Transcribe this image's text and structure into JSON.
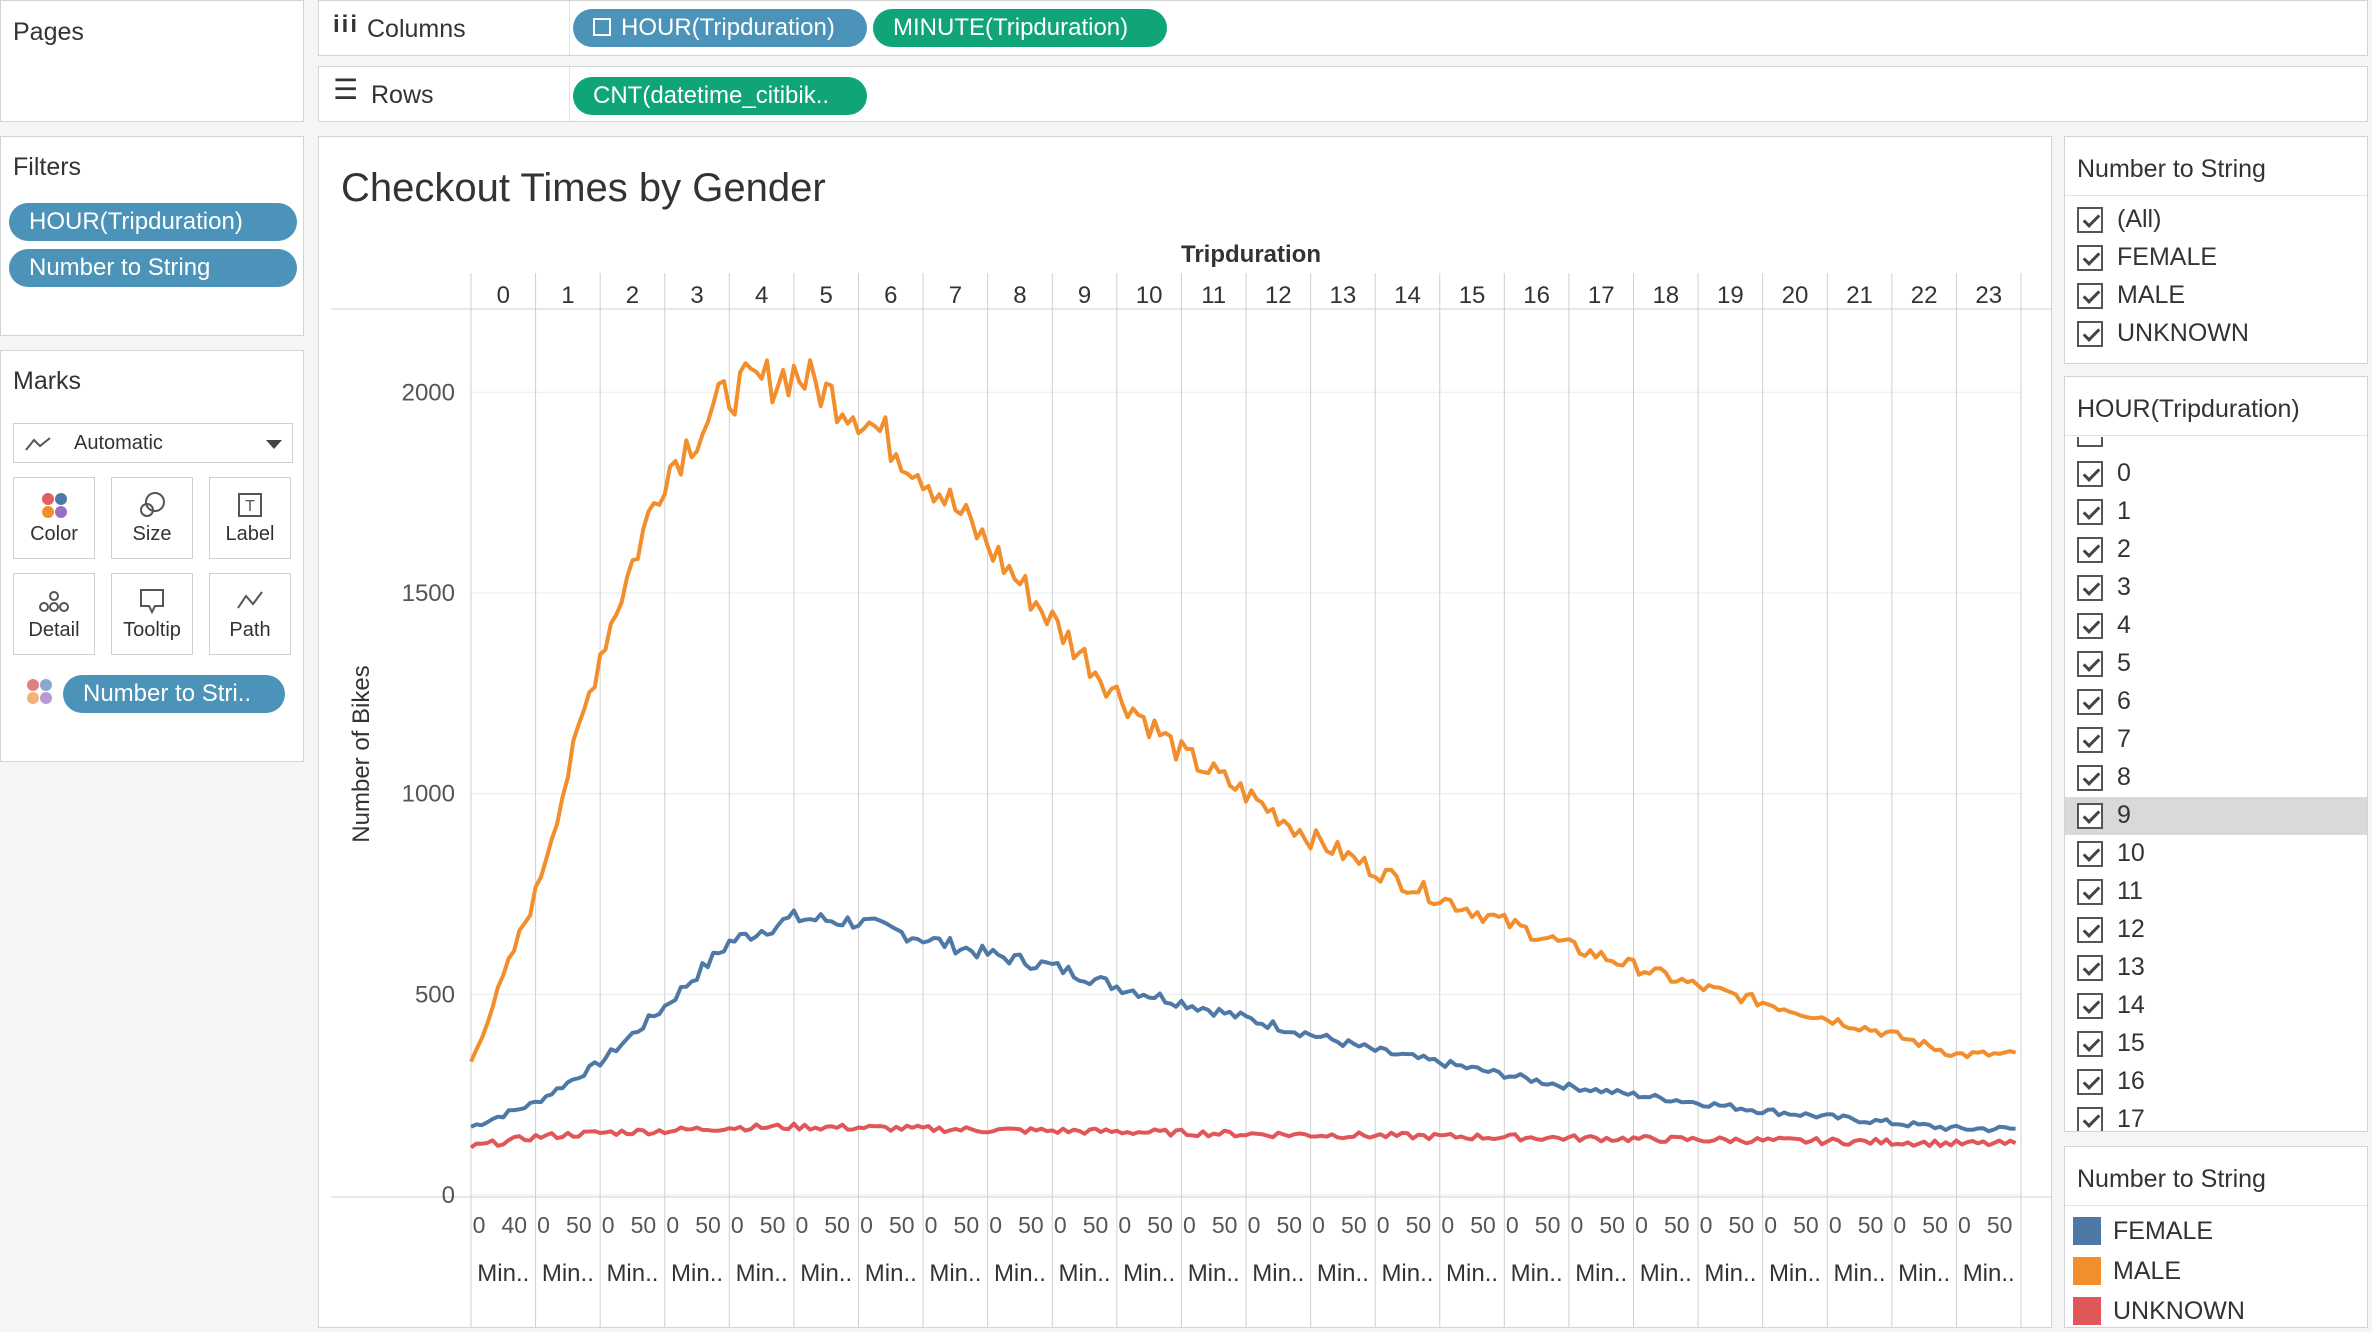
{
  "pages": {
    "title": "Pages"
  },
  "shelves": {
    "columns_label": "Columns",
    "rows_label": "Rows",
    "columns_pills": [
      "HOUR(Tripduration)",
      "MINUTE(Tripduration)"
    ],
    "rows_pills": [
      "CNT(datetime_citibik.."
    ]
  },
  "filters": {
    "title": "Filters",
    "pills": [
      "HOUR(Tripduration)",
      "Number to String"
    ]
  },
  "marks": {
    "title": "Marks",
    "type": "Automatic",
    "buttons": [
      "Color",
      "Size",
      "Label",
      "Detail",
      "Tooltip",
      "Path"
    ],
    "color_pill": "Number to Stri.."
  },
  "gender_filter": {
    "title": "Number to String",
    "items": [
      "(All)",
      "FEMALE",
      "MALE",
      "UNKNOWN"
    ]
  },
  "hour_filter": {
    "title": "HOUR(Tripduration)",
    "items": [
      "0",
      "1",
      "2",
      "3",
      "4",
      "5",
      "6",
      "7",
      "8",
      "9",
      "10",
      "11",
      "12",
      "13",
      "14",
      "15",
      "16",
      "17"
    ],
    "highlighted": "9"
  },
  "legend": {
    "title": "Number to String",
    "items": [
      {
        "label": "FEMALE",
        "color": "#4e79a7"
      },
      {
        "label": "MALE",
        "color": "#f28e2b"
      },
      {
        "label": "UNKNOWN",
        "color": "#e15759"
      }
    ]
  },
  "chart_data": {
    "type": "line",
    "title": "Checkout Times by Gender",
    "top_axis_title": "Tripduration",
    "ylabel": "Number of Bikes",
    "ylim": [
      0,
      2200
    ],
    "yticks": [
      0,
      500,
      1000,
      1500,
      2000
    ],
    "hours": [
      "0",
      "1",
      "2",
      "3",
      "4",
      "5",
      "6",
      "7",
      "8",
      "9",
      "10",
      "11",
      "12",
      "13",
      "14",
      "15",
      "16",
      "17",
      "18",
      "19",
      "20",
      "21",
      "22",
      "23"
    ],
    "minute_tick_labels_first": [
      "0",
      "40"
    ],
    "minute_tick_labels": [
      "0",
      "50"
    ],
    "minute_tick_labels_last": [
      "0",
      "50"
    ],
    "minute_axis_label": "Min..",
    "grid": true,
    "series": [
      {
        "name": "FEMALE",
        "color": "#4e79a7",
        "values": [
          170,
          230,
          330,
          470,
          630,
          690,
          680,
          640,
          600,
          570,
          520,
          480,
          440,
          400,
          360,
          330,
          300,
          270,
          250,
          230,
          210,
          195,
          180,
          165
        ]
      },
      {
        "name": "MALE",
        "color": "#f28e2b",
        "values": [
          330,
          750,
          1350,
          1800,
          2000,
          2050,
          1950,
          1800,
          1620,
          1430,
          1250,
          1100,
          1000,
          890,
          810,
          740,
          680,
          620,
          570,
          520,
          480,
          440,
          400,
          350
        ]
      },
      {
        "name": "UNKNOWN",
        "color": "#e15759",
        "values": [
          120,
          145,
          155,
          160,
          168,
          170,
          168,
          165,
          162,
          160,
          158,
          155,
          152,
          150,
          148,
          146,
          144,
          142,
          140,
          138,
          136,
          134,
          132,
          128
        ]
      }
    ]
  }
}
